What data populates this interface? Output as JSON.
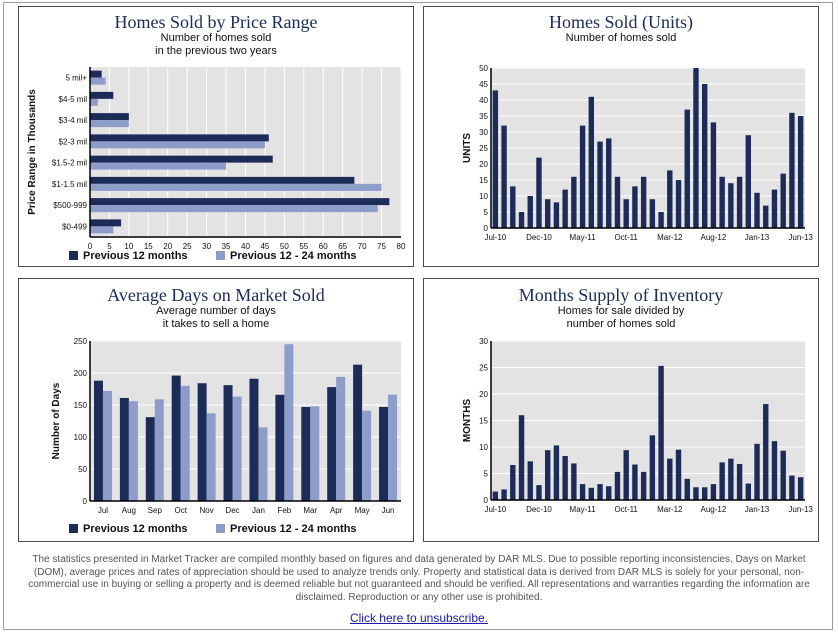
{
  "colors": {
    "dark": "#1d2b59",
    "light": "#8e9cc9",
    "plot_bg": "#e3e3e3",
    "grid": "#ffffff"
  },
  "legend": {
    "series1": "Previous 12 months",
    "series2": "Previous 12 - 24 months"
  },
  "charts": [
    {
      "title": "Homes Sold by Price Range",
      "subtitle": [
        "Number of homes sold",
        "in the previous two years"
      ],
      "chart_data": {
        "type": "bar",
        "orientation": "horizontal",
        "categories": [
          "5 mil+",
          "$4-5 mil",
          "$3-4 mil",
          "$2-3 mil",
          "$1.5-2 mil",
          "$1-1.5 mil",
          "$500-999",
          "$0-499"
        ],
        "series": [
          {
            "name": "Previous 12 months",
            "values": [
              3,
              6,
              10,
              46,
              47,
              68,
              77,
              8
            ]
          },
          {
            "name": "Previous 12 - 24 months",
            "values": [
              4,
              2,
              10,
              45,
              35,
              75,
              74,
              6
            ]
          }
        ],
        "xlabel": "",
        "ylabel": "Price Range in Thousands",
        "xlim": [
          0,
          80
        ],
        "xticks": [
          "0",
          "5",
          "10",
          "15",
          "20",
          "25",
          "30",
          "35",
          "40",
          "45",
          "50",
          "55",
          "60",
          "65",
          "70",
          "75",
          "80"
        ],
        "grid": true,
        "legend_position": "bottom"
      }
    },
    {
      "title": "Homes Sold (Units)",
      "subtitle": [
        "Number of homes sold"
      ],
      "chart_data": {
        "type": "bar",
        "x": [
          "Jul-10",
          "Aug-10",
          "Sep-10",
          "Oct-10",
          "Nov-10",
          "Dec-10",
          "Jan-11",
          "Feb-11",
          "Mar-11",
          "Apr-11",
          "May-11",
          "Jun-11",
          "Jul-11",
          "Aug-11",
          "Sep-11",
          "Oct-11",
          "Nov-11",
          "Dec-11",
          "Jan-12",
          "Feb-12",
          "Mar-12",
          "Apr-12",
          "May-12",
          "Jun-12",
          "Jul-12",
          "Aug-12",
          "Sep-12",
          "Oct-12",
          "Nov-12",
          "Dec-12",
          "Jan-13",
          "Feb-13",
          "Mar-13",
          "Apr-13",
          "May-13",
          "Jun-13"
        ],
        "values": [
          43,
          32,
          13,
          5,
          10,
          22,
          9,
          8,
          12,
          16,
          32,
          41,
          27,
          28,
          16,
          9,
          13,
          16,
          9,
          5,
          18,
          15,
          37,
          50,
          45,
          33,
          16,
          14,
          16,
          29,
          11,
          7,
          12,
          17,
          36,
          35
        ],
        "xtick_labels": [
          "Jul-10",
          "Dec-10",
          "May-11",
          "Oct-11",
          "Mar-12",
          "Aug-12",
          "Jan-13",
          "Jun-13"
        ],
        "ylabel": "UNITS",
        "ylim": [
          0,
          50
        ],
        "yticks": [
          "0",
          "5",
          "10",
          "15",
          "20",
          "25",
          "30",
          "35",
          "40",
          "45",
          "50"
        ],
        "grid": true
      }
    },
    {
      "title": "Average Days on Market Sold",
      "subtitle": [
        "Average number of days",
        "it takes to sell a home"
      ],
      "chart_data": {
        "type": "bar",
        "categories": [
          "Jul",
          "Aug",
          "Sep",
          "Oct",
          "Nov",
          "Dec",
          "Jan",
          "Feb",
          "Mar",
          "Apr",
          "May",
          "Jun"
        ],
        "series": [
          {
            "name": "Previous 12 months",
            "values": [
              188,
              161,
              131,
              196,
              184,
              181,
              191,
              166,
              147,
              178,
              213,
              147
            ]
          },
          {
            "name": "Previous 12 - 24 months",
            "values": [
              172,
              156,
              159,
              180,
              137,
              163,
              115,
              245,
              148,
              194,
              141,
              166
            ]
          }
        ],
        "ylabel": "Number of Days",
        "ylim": [
          0,
          250
        ],
        "yticks": [
          "0",
          "50",
          "100",
          "150",
          "200",
          "250"
        ],
        "grid": true,
        "legend_position": "bottom"
      }
    },
    {
      "title": "Months Supply of Inventory",
      "subtitle": [
        "Homes for sale divided by",
        "number of homes sold"
      ],
      "chart_data": {
        "type": "bar",
        "x": [
          "Jul-10",
          "Aug-10",
          "Sep-10",
          "Oct-10",
          "Nov-10",
          "Dec-10",
          "Jan-11",
          "Feb-11",
          "Mar-11",
          "Apr-11",
          "May-11",
          "Jun-11",
          "Jul-11",
          "Aug-11",
          "Sep-11",
          "Oct-11",
          "Nov-11",
          "Dec-11",
          "Jan-12",
          "Feb-12",
          "Mar-12",
          "Apr-12",
          "May-12",
          "Jun-12",
          "Jul-12",
          "Aug-12",
          "Sep-12",
          "Oct-12",
          "Nov-12",
          "Dec-12",
          "Jan-13",
          "Feb-13",
          "Mar-13",
          "Apr-13",
          "May-13",
          "Jun-13"
        ],
        "values": [
          1.6,
          2.0,
          6.6,
          16.0,
          7.3,
          2.8,
          9.4,
          10.3,
          8.3,
          6.9,
          3.0,
          2.3,
          3.0,
          2.6,
          5.3,
          9.4,
          6.7,
          5.3,
          12.2,
          25.3,
          7.8,
          9.5,
          4.0,
          2.4,
          2.4,
          3.0,
          7.1,
          7.8,
          6.8,
          3.1,
          10.6,
          18.1,
          11.1,
          9.3,
          4.6,
          4.3
        ],
        "xtick_labels": [
          "Jul-10",
          "Dec-10",
          "May-11",
          "Oct-11",
          "Mar-12",
          "Aug-12",
          "Jan-13",
          "Jun-13"
        ],
        "ylabel": "MONTHS",
        "ylim": [
          0,
          30
        ],
        "yticks": [
          "0",
          "5",
          "10",
          "15",
          "20",
          "25",
          "30"
        ],
        "grid": true
      }
    }
  ],
  "disclaimer": "The statistics presented in Market Tracker are compiled monthly based on figures and data generated by DAR MLS. Due to possible reporting inconsistencies, Days on Market (DOM), average prices and rates of appreciation should be used to analyze trends only. Property and statistical data is derived from DAR MLS is solely for your personal, non-commercial use in buying or selling a property and is deemed reliable but not guaranteed and should be verified. All representations and warranties regarding the information are disclaimed. Reproduction or any other use is prohibited.",
  "unsubscribe": "Click here to unsubscribe."
}
